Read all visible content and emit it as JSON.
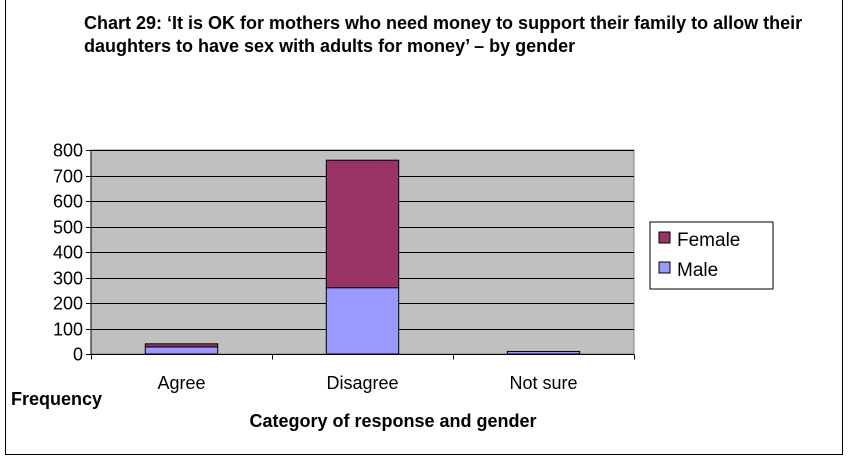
{
  "chart_data": {
    "type": "bar",
    "stacked": true,
    "title": "Chart 29: ‘It is OK for mothers who need money to support their family to allow their daughters to have sex with adults for money’ – by gender",
    "xlabel": "Category of response and gender",
    "ylabel": "Frequency",
    "categories": [
      "Agree",
      "Disagree",
      "Not sure"
    ],
    "series": [
      {
        "name": "Male",
        "values": [
          28,
          260,
          10
        ],
        "color": "#9999ff"
      },
      {
        "name": "Female",
        "values": [
          12,
          500,
          0
        ],
        "color": "#993366"
      }
    ],
    "ylim": [
      0,
      800
    ],
    "yticks": [
      0,
      100,
      200,
      300,
      400,
      500,
      600,
      700,
      800
    ],
    "grid": true,
    "plot_background": "#c0c0c0",
    "legend_position": "right",
    "legend_order": [
      "Female",
      "Male"
    ]
  }
}
